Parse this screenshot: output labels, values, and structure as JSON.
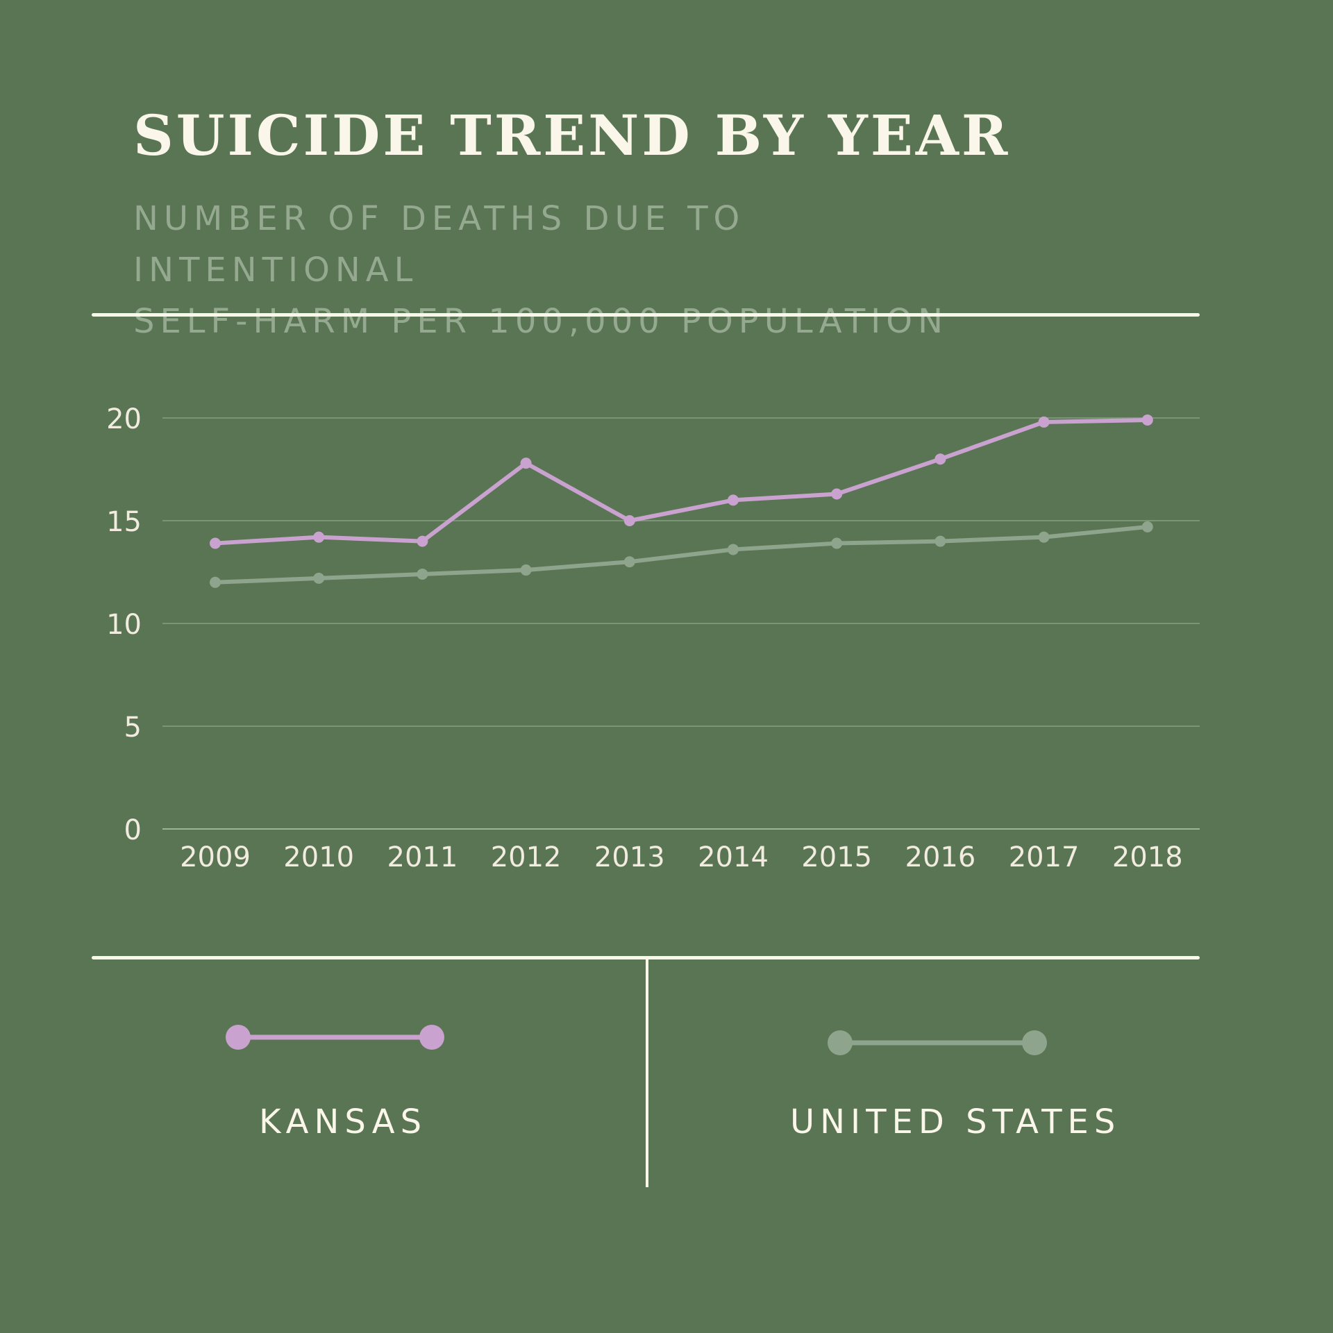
{
  "title": "SUICIDE TREND BY YEAR",
  "subtitle_lines": [
    "NUMBER OF DEATHS DUE TO INTENTIONAL",
    "SELF-HARM PER 100,000 POPULATION"
  ],
  "colors": {
    "background": "#5a7553",
    "kansas": "#c9a2d0",
    "united_states": "#8fa48c",
    "text": "#fbf6ea"
  },
  "chart_data": {
    "type": "line",
    "title": "SUICIDE TREND BY YEAR",
    "x": [
      "2009",
      "2010",
      "2011",
      "2012",
      "2013",
      "2014",
      "2015",
      "2016",
      "2017",
      "2018"
    ],
    "ylim": [
      0,
      20
    ],
    "yticks": [
      0,
      5,
      10,
      15,
      20
    ],
    "grid": true,
    "legend_position": "bottom",
    "series": [
      {
        "name": "KANSAS",
        "values": [
          13.9,
          14.2,
          14.0,
          17.8,
          15.0,
          16.0,
          16.3,
          18.0,
          19.8,
          19.9
        ]
      },
      {
        "name": "UNITED STATES",
        "values": [
          12.0,
          12.2,
          12.4,
          12.6,
          13.0,
          13.6,
          13.9,
          14.0,
          14.2,
          14.7
        ]
      }
    ]
  },
  "legend": [
    {
      "label": "KANSAS",
      "icon": "line-marker-icon"
    },
    {
      "label": "UNITED STATES",
      "icon": "line-marker-icon"
    }
  ]
}
